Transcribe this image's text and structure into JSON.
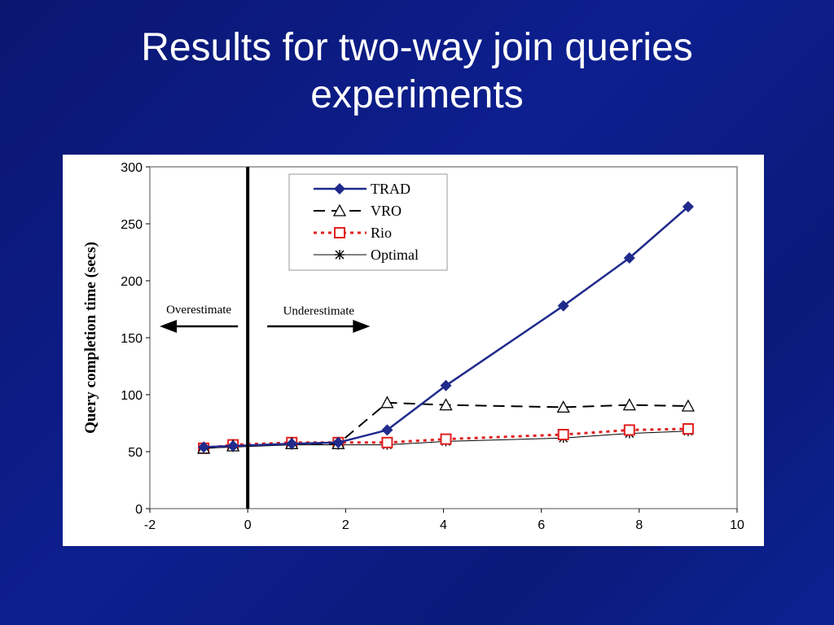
{
  "slide": {
    "title_line1": "Results for two-way join queries",
    "title_line2": "experiments"
  },
  "colors": {
    "background": "#0d1f8f",
    "trad": "#1f2a8c",
    "rio": "#e02020",
    "black": "#000000"
  },
  "chart_data": {
    "type": "line",
    "title": "",
    "xlabel": "",
    "ylabel": "Query completion time (secs)",
    "xlim": [
      -2,
      10
    ],
    "ylim": [
      0,
      300
    ],
    "xticks": [
      "-2",
      "0",
      "2",
      "4",
      "6",
      "8",
      "10"
    ],
    "yticks": [
      "0",
      "50",
      "100",
      "150",
      "200",
      "250",
      "300"
    ],
    "legend_position": "top-center",
    "annotations": {
      "overestimate": "Overestimate",
      "underestimate": "Underestimate",
      "vertical_line_x": 0
    },
    "series": [
      {
        "name": "TRAD",
        "marker": "diamond",
        "line": "solid",
        "x": [
          -0.9,
          -0.3,
          0.9,
          1.85,
          2.85,
          4.05,
          6.45,
          7.8,
          9.0
        ],
        "y": [
          54,
          55,
          57,
          58,
          69,
          108,
          178,
          220,
          265
        ]
      },
      {
        "name": "VRO",
        "marker": "triangle",
        "line": "dashed",
        "x": [
          -0.9,
          -0.3,
          0.9,
          1.85,
          2.85,
          4.05,
          6.45,
          7.8,
          9.0
        ],
        "y": [
          53,
          55,
          57,
          57,
          93,
          91,
          89,
          91,
          90
        ]
      },
      {
        "name": "Rio",
        "marker": "square",
        "line": "dotted",
        "x": [
          -0.9,
          -0.3,
          0.9,
          1.85,
          2.85,
          4.05,
          6.45,
          7.8,
          9.0
        ],
        "y": [
          53,
          56,
          58,
          58,
          58,
          61,
          65,
          69,
          70
        ]
      },
      {
        "name": "Optimal",
        "marker": "star",
        "line": "solid-thin",
        "x": [
          -0.9,
          -0.3,
          0.9,
          1.85,
          2.85,
          4.05,
          6.45,
          7.8,
          9.0
        ],
        "y": [
          53,
          54,
          56,
          56,
          56,
          59,
          62,
          66,
          68
        ]
      }
    ]
  }
}
